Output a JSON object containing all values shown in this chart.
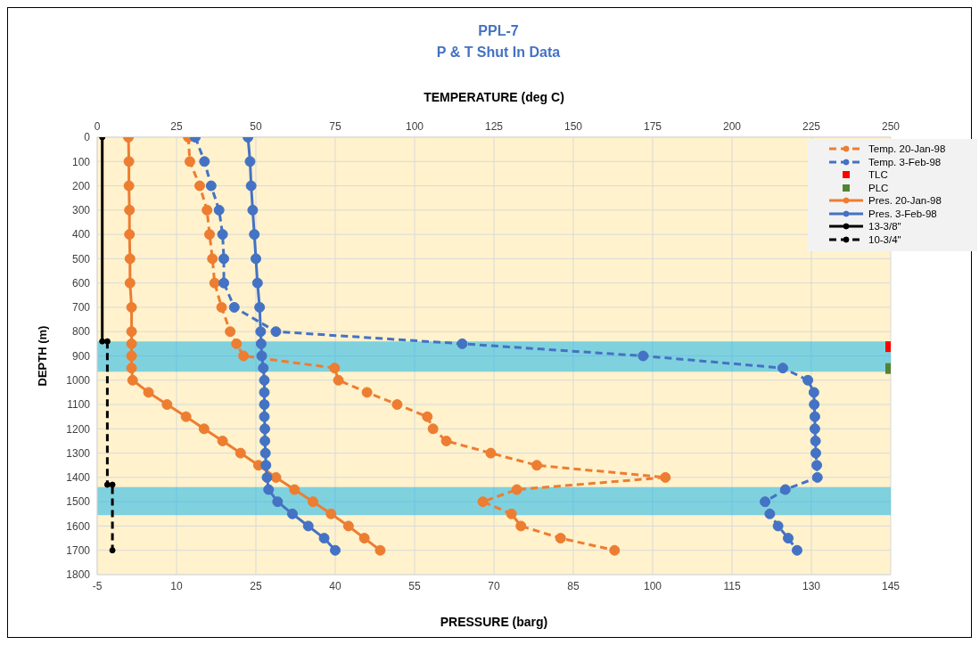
{
  "chart_data": {
    "type": "line",
    "title": "PPL-7",
    "subtitle": "P & T Shut In Data",
    "xlabel": "PRESSURE (barg)",
    "x2label": "TEMPERATURE (deg C)",
    "ylabel": "DEPTH (m)",
    "xlim": [
      -5,
      145
    ],
    "xticks": [
      -5,
      10,
      25,
      40,
      55,
      70,
      85,
      100,
      115,
      130,
      145
    ],
    "x2lim": [
      0,
      250
    ],
    "x2ticks": [
      0,
      25,
      50,
      75,
      100,
      125,
      150,
      175,
      200,
      225,
      250
    ],
    "ylim": [
      1800,
      0
    ],
    "yticks": [
      0,
      100,
      200,
      300,
      400,
      500,
      600,
      700,
      800,
      900,
      1000,
      1100,
      1200,
      1300,
      1400,
      1500,
      1600,
      1700,
      1800
    ],
    "grid": true,
    "legend": "top right",
    "bands": [
      {
        "axis": "y",
        "from": 840,
        "to": 965,
        "color": "#00b0f0"
      },
      {
        "axis": "y",
        "from": 1440,
        "to": 1555,
        "color": "#00b0f0"
      }
    ],
    "series": [
      {
        "name": "Temp. 20-Jan-98",
        "color": "#ed7d31",
        "axis": "x2",
        "line_style": "dashed",
        "marker": "circle",
        "x": [
          28.7,
          29.2,
          32.3,
          34.6,
          35.4,
          36.3,
          37.0,
          39.2,
          41.9,
          43.9,
          46.1,
          74.8,
          76.0,
          85,
          94.5,
          104,
          105.8,
          110,
          124,
          138.5,
          179,
          132.2,
          121.5,
          130.5,
          133.5,
          146,
          163
        ],
        "values": [
          0,
          100,
          200,
          300,
          400,
          500,
          600,
          700,
          800,
          850,
          900,
          950,
          1000,
          1050,
          1100,
          1150,
          1200,
          1250,
          1300,
          1350,
          1400,
          1450,
          1500,
          1550,
          1600,
          1650,
          1700
        ]
      },
      {
        "name": "Temp. 3-Feb-98",
        "color": "#4472c4",
        "axis": "x2",
        "line_style": "dashed",
        "marker": "circle",
        "x": [
          30.9,
          33.8,
          35.9,
          38.4,
          39.5,
          39.9,
          39.9,
          43.2,
          56.3,
          115,
          172,
          216,
          223.9,
          225.8,
          225.9,
          226.1,
          226.1,
          226.3,
          226.4,
          226.7,
          226.9,
          216.8,
          210.4,
          211.9,
          214.5,
          217.7,
          220.5
        ],
        "values": [
          0,
          100,
          200,
          300,
          400,
          500,
          600,
          700,
          800,
          850,
          900,
          950,
          1000,
          1050,
          1100,
          1150,
          1200,
          1250,
          1300,
          1350,
          1400,
          1450,
          1500,
          1550,
          1600,
          1650,
          1700
        ]
      },
      {
        "name": "TLC",
        "color": "#ff0000",
        "type": "scatter",
        "axis": "x2",
        "marker": "square",
        "x": [
          250
        ],
        "values": [
          862
        ]
      },
      {
        "name": "PLC",
        "color": "#548235",
        "type": "scatter",
        "axis": "x2",
        "marker": "square",
        "x": [
          250
        ],
        "values": [
          952
        ]
      },
      {
        "name": "Pres. 20-Jan-98",
        "color": "#ed7d31",
        "line_style": "solid",
        "marker": "circle",
        "x": [
          0.9,
          1.0,
          1.0,
          1.1,
          1.1,
          1.2,
          1.2,
          1.5,
          1.5,
          1.5,
          1.5,
          1.5,
          1.7,
          4.7,
          8.2,
          11.8,
          15.2,
          18.7,
          22.1,
          25.5,
          28.8,
          32.3,
          35.8,
          39.2,
          42.5,
          45.5,
          48.5
        ],
        "values": [
          0,
          100,
          200,
          300,
          400,
          500,
          600,
          700,
          800,
          850,
          900,
          950,
          1000,
          1050,
          1100,
          1150,
          1200,
          1250,
          1300,
          1350,
          1400,
          1450,
          1500,
          1550,
          1600,
          1650,
          1700
        ]
      },
      {
        "name": "Pres. 3-Feb-98",
        "color": "#4472c4",
        "line_style": "solid",
        "marker": "circle",
        "x": [
          23.5,
          23.9,
          24.1,
          24.4,
          24.7,
          25.0,
          25.3,
          25.7,
          25.9,
          26.0,
          26.1,
          26.4,
          26.6,
          26.6,
          26.6,
          26.6,
          26.7,
          26.7,
          26.8,
          26.9,
          27.1,
          27.4,
          29.1,
          31.9,
          34.9,
          37.9,
          40.0
        ],
        "values": [
          0,
          100,
          200,
          300,
          400,
          500,
          600,
          700,
          800,
          850,
          900,
          950,
          1000,
          1050,
          1100,
          1150,
          1200,
          1250,
          1300,
          1350,
          1400,
          1450,
          1500,
          1550,
          1600,
          1650,
          1700
        ]
      },
      {
        "name": "13-3/8\"",
        "color": "#000000",
        "axis": "x2",
        "line_style": "solid",
        "marker": "circle",
        "x": [
          1.6,
          1.6
        ],
        "values": [
          0,
          840
        ]
      },
      {
        "name": "10-3/4\"",
        "color": "#000000",
        "axis": "x2",
        "line_style": "dashed",
        "marker": "circle",
        "x": [
          3.2,
          3.2,
          4.8,
          4.8
        ],
        "values": [
          840,
          1430,
          1430,
          1700
        ]
      }
    ]
  }
}
